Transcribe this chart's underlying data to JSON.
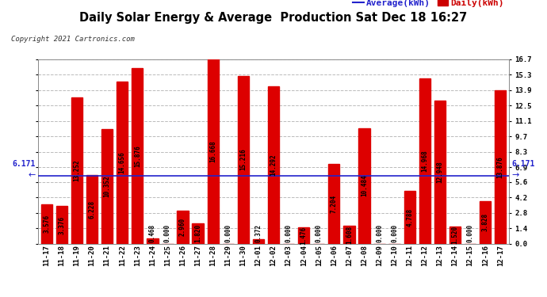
{
  "title": "Daily Solar Energy & Average  Production Sat Dec 18 16:27",
  "copyright": "Copyright 2021 Cartronics.com",
  "categories": [
    "11-17",
    "11-18",
    "11-19",
    "11-20",
    "11-21",
    "11-22",
    "11-23",
    "11-24",
    "11-25",
    "11-26",
    "11-27",
    "11-28",
    "11-29",
    "11-30",
    "12-01",
    "12-02",
    "12-03",
    "12-04",
    "12-05",
    "12-06",
    "12-07",
    "12-08",
    "12-09",
    "12-10",
    "12-11",
    "12-12",
    "12-13",
    "12-14",
    "12-15",
    "12-16",
    "12-17"
  ],
  "values": [
    3.576,
    3.376,
    13.252,
    6.228,
    10.352,
    14.656,
    15.876,
    0.468,
    0.0,
    2.96,
    1.82,
    16.668,
    0.0,
    15.216,
    0.372,
    14.292,
    0.0,
    1.476,
    0.0,
    7.204,
    1.608,
    10.484,
    0.0,
    0.0,
    4.788,
    14.968,
    12.948,
    1.52,
    0.0,
    3.828,
    13.876
  ],
  "average": 6.171,
  "bar_color": "#dd0000",
  "avg_line_color": "#2222cc",
  "avg_label_color": "#2222cc",
  "daily_label_color": "#cc0000",
  "background_color": "#ffffff",
  "grid_color": "#bbbbbb",
  "title_color": "#000000",
  "ylim": [
    0.0,
    16.7
  ],
  "yticks": [
    0.0,
    1.4,
    2.8,
    4.2,
    5.6,
    6.9,
    8.3,
    9.7,
    11.1,
    12.5,
    13.9,
    15.3,
    16.7
  ],
  "title_fontsize": 10.5,
  "tick_fontsize": 6.5,
  "bar_label_fontsize": 5.5,
  "copyright_fontsize": 6.5,
  "legend_fontsize": 8
}
